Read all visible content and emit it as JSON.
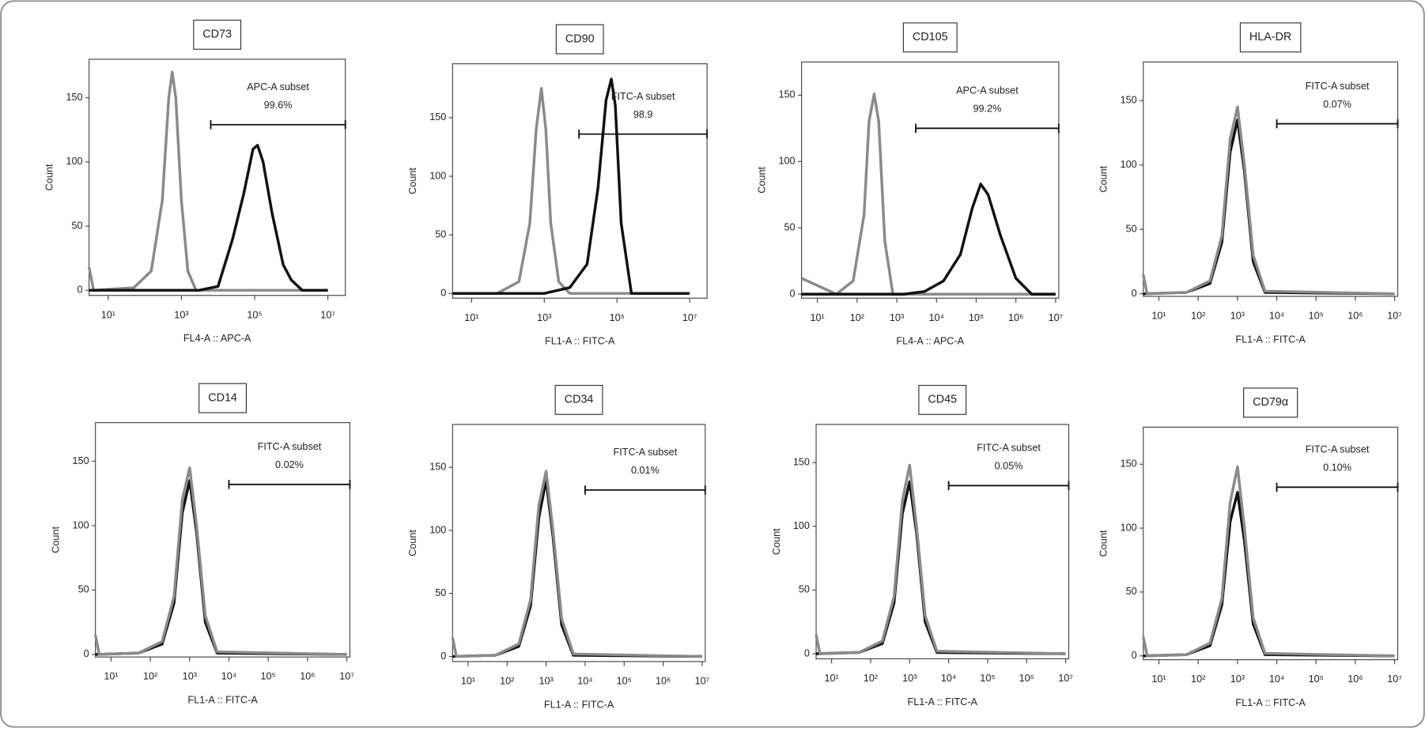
{
  "chart_data": [
    {
      "type": "line",
      "title": "CD73",
      "xlabel": "FL4-A :: APC-A",
      "ylabel": "Count",
      "log_x": true,
      "xlim": [
        3,
        30000000
      ],
      "xticks": [
        {
          "value": 10,
          "label": "10¹"
        },
        {
          "value": 1000,
          "label": "10³"
        },
        {
          "value": 100000,
          "label": "10⁵"
        },
        {
          "value": 10000000,
          "label": "10⁷"
        }
      ],
      "ylim": [
        -4,
        180
      ],
      "yticks": [
        0,
        50,
        100,
        150
      ],
      "series": [
        {
          "color": "#8a8a8a",
          "x": [
            3,
            4,
            50,
            150,
            300,
            450,
            560,
            700,
            1000,
            1500,
            2500,
            10000000
          ],
          "values": [
            18,
            0,
            2,
            15,
            70,
            150,
            170,
            150,
            70,
            15,
            0,
            0
          ]
        },
        {
          "color": "#111111",
          "x": [
            3,
            3000,
            10000,
            25000,
            50000,
            90000,
            120000,
            170000,
            300000,
            600000,
            1000000,
            2000000,
            10000000
          ],
          "values": [
            0,
            0,
            3,
            40,
            75,
            110,
            113,
            100,
            60,
            20,
            8,
            0,
            0
          ]
        }
      ],
      "gate": {
        "name": "APC-A subset",
        "percent": "99.6%",
        "x": [
          6300,
          30000000
        ],
        "y": 129
      }
    },
    {
      "type": "line",
      "title": "CD90",
      "xlabel": "FL1-A :: FITC-A",
      "ylabel": "Count",
      "log_x": true,
      "xlim": [
        3,
        30000000
      ],
      "xticks": [
        {
          "value": 10,
          "label": "10¹"
        },
        {
          "value": 1000,
          "label": "10³"
        },
        {
          "value": 100000,
          "label": "10⁵"
        },
        {
          "value": 10000000,
          "label": "10⁷"
        }
      ],
      "ylim": [
        -4,
        196
      ],
      "yticks": [
        0,
        50,
        100,
        150
      ],
      "series": [
        {
          "color": "#8a8a8a",
          "x": [
            3,
            50,
            200,
            400,
            600,
            830,
            1100,
            1500,
            2500,
            5000,
            10000000
          ],
          "values": [
            0,
            0,
            10,
            60,
            140,
            175,
            140,
            60,
            10,
            0,
            0
          ]
        },
        {
          "color": "#111111",
          "x": [
            3,
            1000,
            5000,
            15000,
            30000,
            50000,
            70000,
            90000,
            130000,
            250000,
            10000000
          ],
          "values": [
            0,
            0,
            5,
            25,
            90,
            165,
            183,
            160,
            60,
            0,
            0
          ]
        }
      ],
      "gate": {
        "name": "FITC-A subset",
        "percent": "98.9",
        "x": [
          9000,
          30000000
        ],
        "y": 136
      }
    },
    {
      "type": "line",
      "title": "CD105",
      "xlabel": "FL4-A :: APC-A",
      "ylabel": "Count",
      "log_x": true,
      "xlim": [
        4,
        12000000
      ],
      "xticks": [
        {
          "value": 10,
          "label": "10¹"
        },
        {
          "value": 100,
          "label": "10²"
        },
        {
          "value": 1000,
          "label": "10³"
        },
        {
          "value": 10000,
          "label": "10⁴"
        },
        {
          "value": 100000,
          "label": "10⁵"
        },
        {
          "value": 1000000,
          "label": "10⁶"
        },
        {
          "value": 10000000,
          "label": "10⁷"
        }
      ],
      "ylim": [
        -3,
        175
      ],
      "yticks": [
        0,
        50,
        100,
        150
      ],
      "series": [
        {
          "color": "#8a8a8a",
          "x": [
            4,
            30,
            80,
            150,
            200,
            270,
            350,
            500,
            800,
            10000000
          ],
          "values": [
            12,
            0,
            10,
            60,
            130,
            151,
            130,
            40,
            0,
            0
          ]
        },
        {
          "color": "#111111",
          "x": [
            4,
            1500,
            5000,
            15000,
            40000,
            80000,
            130000,
            200000,
            400000,
            1000000,
            2500000,
            10000000
          ],
          "values": [
            0,
            0,
            2,
            10,
            30,
            65,
            83,
            75,
            45,
            12,
            0,
            0
          ]
        }
      ],
      "gate": {
        "name": "APC-A subset",
        "percent": "99.2%",
        "x": [
          3000,
          12000000
        ],
        "y": 125
      }
    },
    {
      "type": "line",
      "title": "HLA-DR",
      "xlabel": "FL1-A :: FITC-A",
      "ylabel": "Count",
      "log_x": true,
      "xlim": [
        4,
        12000000
      ],
      "xticks": [
        {
          "value": 10,
          "label": "10¹"
        },
        {
          "value": 100,
          "label": "10²"
        },
        {
          "value": 1000,
          "label": "10³"
        },
        {
          "value": 10000,
          "label": "10⁴"
        },
        {
          "value": 100000,
          "label": "10⁵"
        },
        {
          "value": 1000000,
          "label": "10⁶"
        },
        {
          "value": 10000000,
          "label": "10⁷"
        }
      ],
      "ylim": [
        -2,
        180
      ],
      "yticks": [
        0,
        50,
        100,
        150
      ],
      "series": [
        {
          "color": "#111111",
          "x": [
            4,
            50,
            200,
            400,
            650,
            1000,
            1500,
            2500,
            5000,
            10000000
          ],
          "values": [
            0,
            1,
            8,
            40,
            110,
            135,
            95,
            25,
            1,
            0
          ]
        },
        {
          "color": "#8a8a8a",
          "x": [
            4,
            5,
            50,
            200,
            400,
            650,
            1000,
            1500,
            2500,
            5000,
            10000000
          ],
          "values": [
            15,
            0,
            1,
            10,
            45,
            120,
            145,
            100,
            30,
            2,
            0
          ]
        }
      ],
      "gate": {
        "name": "FITC-A subset",
        "percent": "0.07%",
        "x": [
          10000,
          12000000
        ],
        "y": 132
      }
    },
    {
      "type": "line",
      "title": "CD14",
      "xlabel": "FL1-A :: FITC-A",
      "ylabel": "Count",
      "log_x": true,
      "xlim": [
        4,
        12000000
      ],
      "xticks": [
        {
          "value": 10,
          "label": "10¹"
        },
        {
          "value": 100,
          "label": "10²"
        },
        {
          "value": 1000,
          "label": "10³"
        },
        {
          "value": 10000,
          "label": "10⁴"
        },
        {
          "value": 100000,
          "label": "10⁵"
        },
        {
          "value": 1000000,
          "label": "10⁶"
        },
        {
          "value": 10000000,
          "label": "10⁷"
        }
      ],
      "ylim": [
        -2,
        180
      ],
      "yticks": [
        0,
        50,
        100,
        150
      ],
      "series": [
        {
          "color": "#111111",
          "x": [
            4,
            50,
            200,
            400,
            650,
            1000,
            1500,
            2500,
            5000,
            10000000
          ],
          "values": [
            0,
            1,
            8,
            40,
            110,
            135,
            95,
            25,
            1,
            0
          ]
        },
        {
          "color": "#8a8a8a",
          "x": [
            4,
            5,
            50,
            200,
            400,
            650,
            1000,
            1500,
            2500,
            5000,
            10000000
          ],
          "values": [
            15,
            0,
            1,
            10,
            45,
            120,
            145,
            100,
            30,
            2,
            0
          ]
        }
      ],
      "gate": {
        "name": "FITC-A subset",
        "percent": "0.02%",
        "x": [
          10000,
          12000000
        ],
        "y": 132
      }
    },
    {
      "type": "line",
      "title": "CD34",
      "xlabel": "FL1-A :: FITC-A",
      "ylabel": "Count",
      "log_x": true,
      "xlim": [
        4,
        12000000
      ],
      "xticks": [
        {
          "value": 10,
          "label": "10¹"
        },
        {
          "value": 100,
          "label": "10²"
        },
        {
          "value": 1000,
          "label": "10³"
        },
        {
          "value": 10000,
          "label": "10⁴"
        },
        {
          "value": 100000,
          "label": "10⁵"
        },
        {
          "value": 1000000,
          "label": "10⁶"
        },
        {
          "value": 10000000,
          "label": "10⁷"
        }
      ],
      "ylim": [
        -4,
        184
      ],
      "yticks": [
        0,
        50,
        100,
        150
      ],
      "series": [
        {
          "color": "#111111",
          "x": [
            4,
            50,
            200,
            400,
            650,
            1000,
            1500,
            2500,
            5000,
            10000000
          ],
          "values": [
            0,
            1,
            8,
            40,
            110,
            140,
            95,
            25,
            1,
            0
          ]
        },
        {
          "color": "#8a8a8a",
          "x": [
            4,
            5,
            50,
            200,
            400,
            650,
            1000,
            1500,
            2500,
            5000,
            10000000
          ],
          "values": [
            15,
            0,
            1,
            10,
            45,
            120,
            147,
            100,
            30,
            2,
            0
          ]
        }
      ],
      "gate": {
        "name": "FITC-A subset",
        "percent": "0.01%",
        "x": [
          10000,
          12000000
        ],
        "y": 132
      }
    },
    {
      "type": "line",
      "title": "CD45",
      "xlabel": "FL1-A :: FITC-A",
      "ylabel": "Count",
      "log_x": true,
      "xlim": [
        4,
        12000000
      ],
      "xticks": [
        {
          "value": 10,
          "label": "10¹"
        },
        {
          "value": 100,
          "label": "10²"
        },
        {
          "value": 1000,
          "label": "10³"
        },
        {
          "value": 10000,
          "label": "10⁴"
        },
        {
          "value": 100000,
          "label": "10⁵"
        },
        {
          "value": 1000000,
          "label": "10⁶"
        },
        {
          "value": 10000000,
          "label": "10⁷"
        }
      ],
      "ylim": [
        -4,
        180
      ],
      "yticks": [
        0,
        50,
        100,
        150
      ],
      "series": [
        {
          "color": "#111111",
          "x": [
            4,
            50,
            200,
            400,
            650,
            1000,
            1500,
            2500,
            5000,
            10000000
          ],
          "values": [
            0,
            1,
            8,
            40,
            110,
            135,
            95,
            25,
            1,
            0
          ]
        },
        {
          "color": "#8a8a8a",
          "x": [
            4,
            5,
            50,
            200,
            400,
            650,
            1000,
            1500,
            2500,
            5000,
            10000000
          ],
          "values": [
            15,
            0,
            1,
            10,
            45,
            120,
            148,
            100,
            30,
            2,
            0
          ]
        }
      ],
      "gate": {
        "name": "FITC-A subset",
        "percent": "0.05%",
        "x": [
          10000,
          12000000
        ],
        "y": 132
      }
    },
    {
      "type": "line",
      "title": "CD79α",
      "xlabel": "FL1-A :: FITC-A",
      "ylabel": "Count",
      "log_x": true,
      "xlim": [
        4,
        12000000
      ],
      "xticks": [
        {
          "value": 10,
          "label": "10¹"
        },
        {
          "value": 100,
          "label": "10²"
        },
        {
          "value": 1000,
          "label": "10³"
        },
        {
          "value": 10000,
          "label": "10⁴"
        },
        {
          "value": 100000,
          "label": "10⁵"
        },
        {
          "value": 1000000,
          "label": "10⁶"
        },
        {
          "value": 10000000,
          "label": "10⁷"
        }
      ],
      "ylim": [
        -3,
        179
      ],
      "yticks": [
        0,
        50,
        100,
        150
      ],
      "series": [
        {
          "color": "#111111",
          "x": [
            4,
            50,
            200,
            400,
            650,
            1000,
            1500,
            2500,
            5000,
            10000000
          ],
          "values": [
            0,
            1,
            8,
            40,
            105,
            128,
            90,
            25,
            1,
            0
          ]
        },
        {
          "color": "#8a8a8a",
          "x": [
            4,
            5,
            50,
            200,
            400,
            650,
            1000,
            1500,
            2500,
            5000,
            10000000
          ],
          "values": [
            15,
            0,
            1,
            10,
            45,
            120,
            148,
            100,
            30,
            2,
            0
          ]
        }
      ],
      "gate": {
        "name": "FITC-A subset",
        "percent": "0.10%",
        "x": [
          10000,
          12000000
        ],
        "y": 132
      }
    }
  ]
}
